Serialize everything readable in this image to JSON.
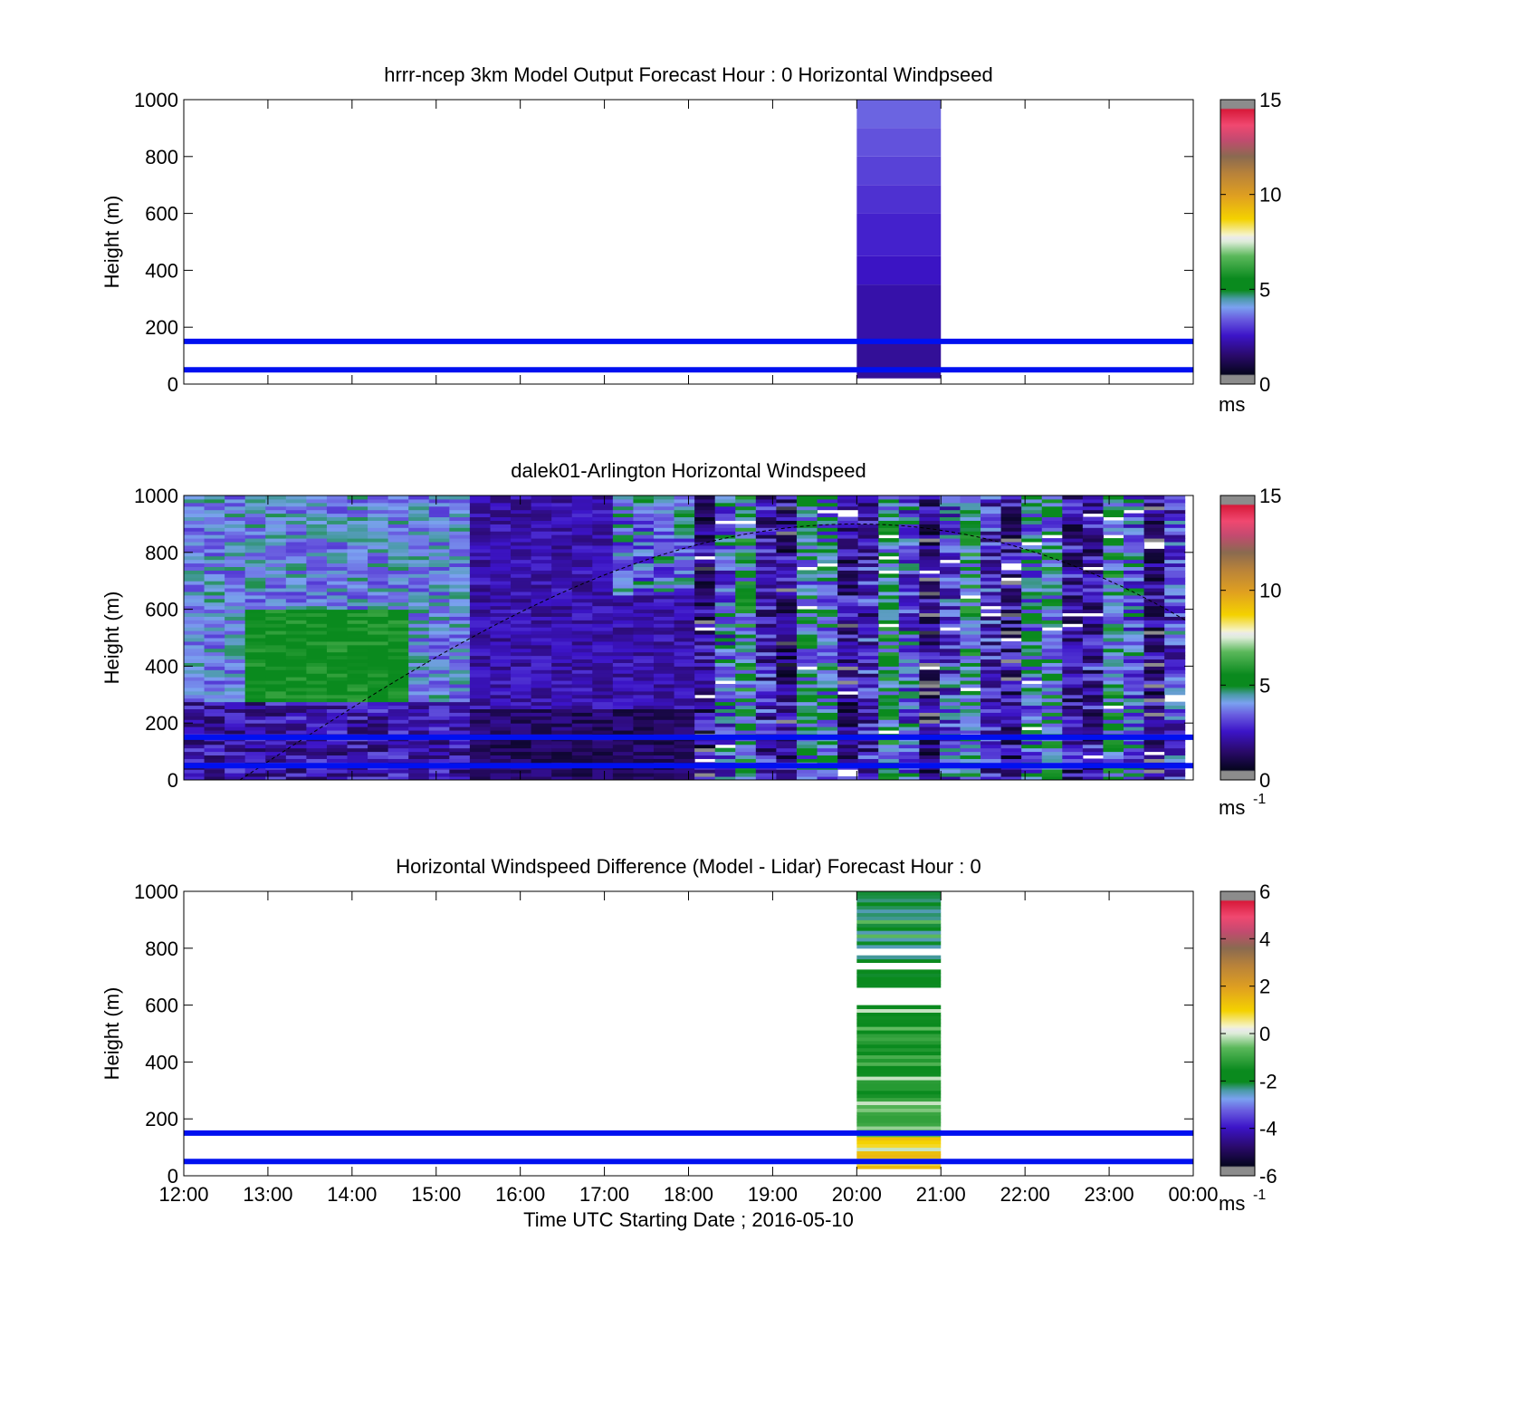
{
  "chart_data": [
    {
      "type": "heatmap",
      "title": "hrrr-ncep 3km Model Output   Forecast Hour : 0 Horizontal Windpseed",
      "ylabel": "Height (m)",
      "xlim": [
        "12:00",
        "00:00"
      ],
      "ylim": [
        0,
        1000
      ],
      "yticks": [
        "0",
        "200",
        "400",
        "600",
        "800",
        "1000"
      ],
      "colorbar": {
        "range": [
          0,
          15
        ],
        "ticks": [
          "0",
          "5",
          "10",
          "15"
        ],
        "unit": "ms",
        "unit_sup": ""
      },
      "reference_heights": [
        50,
        150
      ],
      "model_column": {
        "time_start": "20:00",
        "time_end": "21:00",
        "levels": [
          {
            "y0": 20,
            "y1": 50,
            "speed": 2.0
          },
          {
            "y0": 50,
            "y1": 150,
            "speed": 2.0
          },
          {
            "y0": 150,
            "y1": 350,
            "speed": 2.2
          },
          {
            "y0": 350,
            "y1": 450,
            "speed": 2.5
          },
          {
            "y0": 450,
            "y1": 600,
            "speed": 2.7
          },
          {
            "y0": 600,
            "y1": 700,
            "speed": 2.9
          },
          {
            "y0": 700,
            "y1": 800,
            "speed": 3.1
          },
          {
            "y0": 800,
            "y1": 900,
            "speed": 3.3
          },
          {
            "y0": 900,
            "y1": 1000,
            "speed": 3.5
          }
        ]
      }
    },
    {
      "type": "heatmap",
      "title": "dalek01-Arlington  Horizontal Windspeed",
      "ylabel": "Height (m)",
      "xlim": [
        "12:00",
        "00:00"
      ],
      "ylim": [
        0,
        1000
      ],
      "yticks": [
        "0",
        "200",
        "400",
        "600",
        "800",
        "1000"
      ],
      "colorbar": {
        "range": [
          0,
          15
        ],
        "ticks": [
          "0",
          "5",
          "10",
          "15"
        ],
        "unit": "ms",
        "unit_sup": "-1"
      },
      "reference_heights": [
        50,
        150
      ],
      "boundary_layer_curve": {
        "start": "12:40",
        "peak_time": "20:00",
        "peak_height": 900,
        "end": "23:55",
        "end_height": 560
      }
    },
    {
      "type": "heatmap",
      "title": "Horizontal Windspeed Difference (Model - Lidar) Forecast Hour : 0",
      "ylabel": "Height (m)",
      "xlabel": "Time UTC  Starting Date ; 2016-05-10",
      "xticks": [
        "12:00",
        "13:00",
        "14:00",
        "15:00",
        "16:00",
        "17:00",
        "18:00",
        "19:00",
        "20:00",
        "21:00",
        "22:00",
        "23:00",
        "00:00"
      ],
      "ylim": [
        0,
        1000
      ],
      "yticks": [
        "0",
        "200",
        "400",
        "600",
        "800",
        "1000"
      ],
      "colorbar": {
        "range": [
          -6,
          6
        ],
        "ticks": [
          "-6",
          "-4",
          "-2",
          "0",
          "2",
          "4",
          "6"
        ],
        "unit": "ms",
        "unit_sup": "-1"
      },
      "reference_heights": [
        50,
        150
      ],
      "difference_column": {
        "time_start": "20:00",
        "time_end": "21:00",
        "gap_heights": [
          [
            600,
            660
          ],
          [
            720,
            750
          ],
          [
            770,
            800
          ]
        ]
      }
    }
  ]
}
